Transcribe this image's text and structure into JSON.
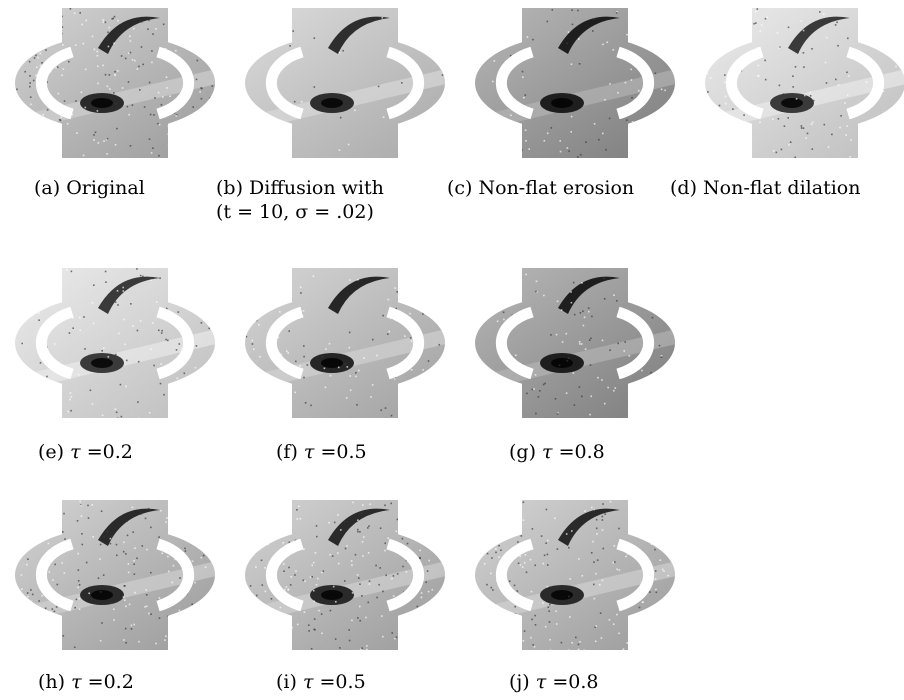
{
  "figure": {
    "panels": [
      {
        "id": "a",
        "caption": "(a) Original",
        "tone": "noisy"
      },
      {
        "id": "b",
        "caption_line1": "(b)  Diffusion   with",
        "caption_line2": "(t = 10, σ = .02)",
        "tone": "smooth"
      },
      {
        "id": "c",
        "caption": "(c) Non-flat erosion",
        "tone": "dark"
      },
      {
        "id": "d",
        "caption": "(d) Non-flat dilation",
        "tone": "light"
      },
      {
        "id": "e",
        "caption_prefix": "(e)",
        "tau": "τ",
        "caption_value": "=0.2",
        "tone": "light"
      },
      {
        "id": "f",
        "caption_prefix": "(f)",
        "tau": "τ",
        "caption_value": "=0.5",
        "tone": "mid"
      },
      {
        "id": "g",
        "caption_prefix": "(g)",
        "tau": "τ",
        "caption_value": "=0.8",
        "tone": "dark"
      },
      {
        "id": "h",
        "caption_prefix": "(h)",
        "tau": "τ",
        "caption_value": "=0.2",
        "tone": "noisy"
      },
      {
        "id": "i",
        "caption_prefix": "(i)",
        "tau": "τ",
        "caption_value": "=0.5",
        "tone": "noisy"
      },
      {
        "id": "j",
        "caption_prefix": "(j)",
        "tau": "τ",
        "caption_value": "=0.8",
        "tone": "noisy"
      }
    ]
  }
}
